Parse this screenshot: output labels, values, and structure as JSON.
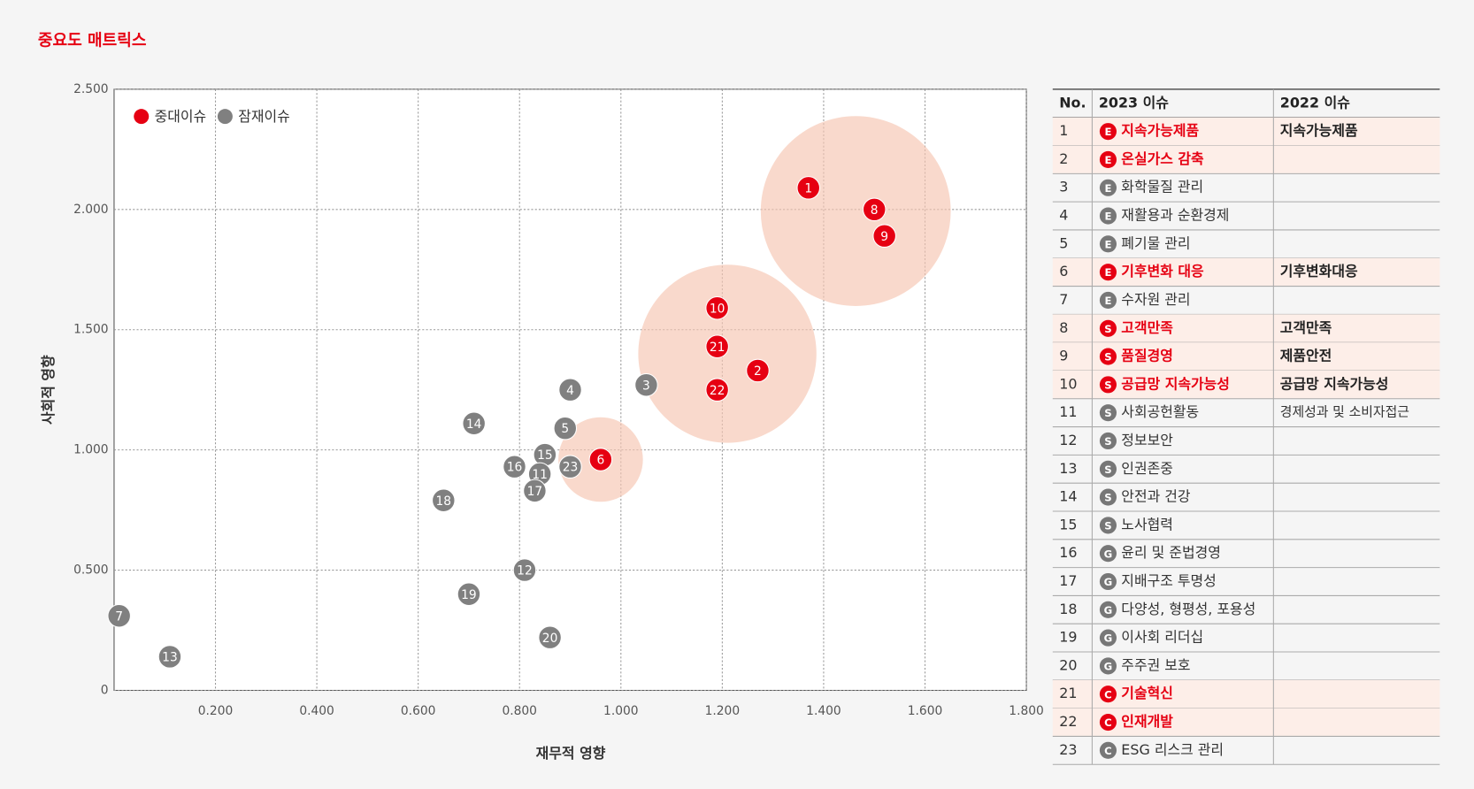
{
  "chart_data": {
    "type": "scatter",
    "title": "중요도 매트릭스",
    "x_label": "재무적 영향",
    "y_label": "사회적 영향",
    "xlim": [
      0,
      1.8
    ],
    "xticks": [
      {
        "value": 0.2,
        "label": "0.200"
      },
      {
        "value": 0.4,
        "label": "0.400"
      },
      {
        "value": 0.6,
        "label": "0.600"
      },
      {
        "value": 0.8,
        "label": "0.800"
      },
      {
        "value": 1.0,
        "label": "1.000"
      },
      {
        "value": 1.2,
        "label": "1.200"
      },
      {
        "value": 1.4,
        "label": "1.400"
      },
      {
        "value": 1.6,
        "label": "1.600"
      },
      {
        "value": 1.8,
        "label": "1.800"
      }
    ],
    "ylim": [
      0,
      2.5
    ],
    "yticks": [
      0,
      {
        "value": 0.5,
        "label": "0.500"
      },
      {
        "value": 1.0,
        "label": "1.000"
      },
      {
        "value": 1.5,
        "label": "1.500"
      },
      {
        "value": 2.0,
        "label": "2.000"
      },
      {
        "value": 2.5,
        "label": "2.500"
      }
    ],
    "grid": true,
    "legend": "upper left",
    "series": [
      {
        "name": "중대이슈",
        "color": "#e60012",
        "labels": [
          "1",
          "8",
          "9",
          "10",
          "21",
          "2",
          "22",
          "6"
        ],
        "x": [
          1.37,
          1.5,
          1.52,
          1.19,
          1.19,
          1.27,
          1.19,
          0.96
        ],
        "values": [
          2.09,
          2.0,
          1.89,
          1.59,
          1.43,
          1.33,
          1.25,
          0.96
        ]
      },
      {
        "name": "잠재이슈",
        "color": "#808080",
        "labels": [
          "3",
          "4",
          "14",
          "5",
          "15",
          "16",
          "11",
          "23",
          "17",
          "18",
          "12",
          "19",
          "20",
          "7",
          "13"
        ],
        "x": [
          1.05,
          0.9,
          0.71,
          0.89,
          0.85,
          0.79,
          0.84,
          0.9,
          0.83,
          0.65,
          0.81,
          0.7,
          0.86,
          0.01,
          0.11
        ],
        "values": [
          1.27,
          1.25,
          1.11,
          1.09,
          0.98,
          0.93,
          0.9,
          0.93,
          0.83,
          0.79,
          0.5,
          0.4,
          0.22,
          0.31,
          0.14
        ]
      }
    ]
  },
  "table": {
    "columns": [
      "No.",
      "2023 이슈",
      "2022 이슈"
    ],
    "rows": [
      {
        "no": 1,
        "category": "E",
        "issue_2023": "지속가능제품",
        "issue_2022": "지속가능제품",
        "major": true
      },
      {
        "no": 2,
        "category": "E",
        "issue_2023": "온실가스 감축",
        "issue_2022": null,
        "major": true
      },
      {
        "no": 3,
        "category": "E",
        "issue_2023": "화학물질 관리",
        "issue_2022": null,
        "major": false
      },
      {
        "no": 4,
        "category": "E",
        "issue_2023": "재활용과 순환경제",
        "issue_2022": null,
        "major": false
      },
      {
        "no": 5,
        "category": "E",
        "issue_2023": "폐기물 관리",
        "issue_2022": null,
        "major": false
      },
      {
        "no": 6,
        "category": "E",
        "issue_2023": "기후변화 대응",
        "issue_2022": "기후변화대응",
        "major": true
      },
      {
        "no": 7,
        "category": "E",
        "issue_2023": "수자원 관리",
        "issue_2022": null,
        "major": false
      },
      {
        "no": 8,
        "category": "S",
        "issue_2023": "고객만족",
        "issue_2022": "고객만족",
        "major": true
      },
      {
        "no": 9,
        "category": "S",
        "issue_2023": "품질경영",
        "issue_2022": "제품안전",
        "major": true
      },
      {
        "no": 10,
        "category": "S",
        "issue_2023": "공급망 지속가능성",
        "issue_2022": "공급망 지속가능성",
        "major": true
      },
      {
        "no": 11,
        "category": "S",
        "issue_2023": "사회공헌활동",
        "issue_2022": "경제성과 및 소비자접근",
        "major": false
      },
      {
        "no": 12,
        "category": "S",
        "issue_2023": "정보보안",
        "issue_2022": null,
        "major": false
      },
      {
        "no": 13,
        "category": "S",
        "issue_2023": "인권존중",
        "issue_2022": null,
        "major": false
      },
      {
        "no": 14,
        "category": "S",
        "issue_2023": "안전과 건강",
        "issue_2022": null,
        "major": false
      },
      {
        "no": 15,
        "category": "S",
        "issue_2023": "노사협력",
        "issue_2022": null,
        "major": false
      },
      {
        "no": 16,
        "category": "G",
        "issue_2023": "윤리 및 준법경영",
        "issue_2022": null,
        "major": false
      },
      {
        "no": 17,
        "category": "G",
        "issue_2023": "지배구조 투명성",
        "issue_2022": null,
        "major": false
      },
      {
        "no": 18,
        "category": "G",
        "issue_2023": "다양성, 형평성, 포용성",
        "issue_2022": null,
        "major": false
      },
      {
        "no": 19,
        "category": "G",
        "issue_2023": "이사회 리더십",
        "issue_2022": null,
        "major": false
      },
      {
        "no": 20,
        "category": "G",
        "issue_2023": "주주권 보호",
        "issue_2022": null,
        "major": false
      },
      {
        "no": 21,
        "category": "C",
        "issue_2023": "기술혁신",
        "issue_2022": null,
        "major": true
      },
      {
        "no": 22,
        "category": "C",
        "issue_2023": "인재개발",
        "issue_2022": null,
        "major": true
      },
      {
        "no": 23,
        "category": "C",
        "issue_2023": "ESG 리스크 관리",
        "issue_2022": null,
        "major": false
      }
    ]
  }
}
